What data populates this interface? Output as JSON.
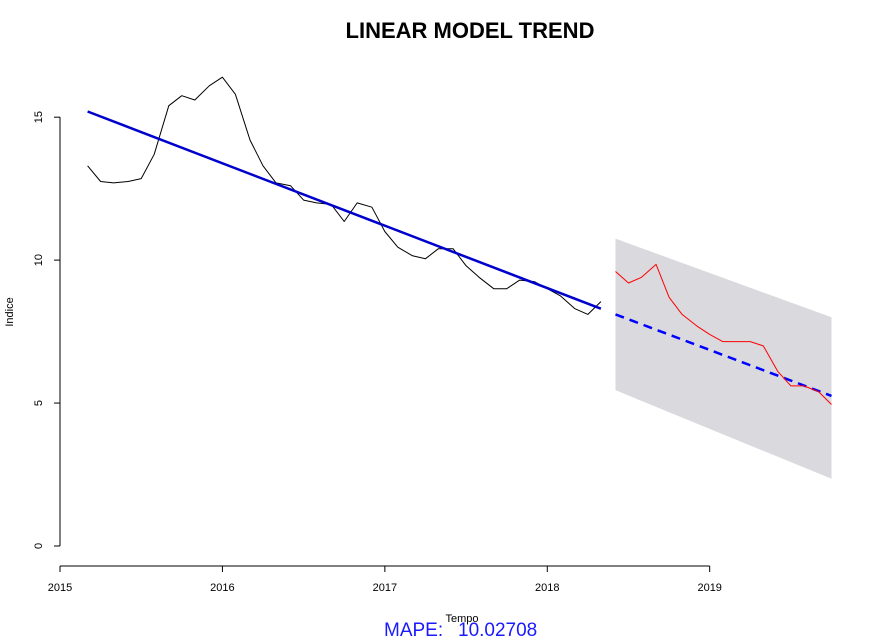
{
  "chart_data": {
    "type": "line",
    "title": "LINEAR MODEL TREND",
    "xlabel": "Tempo",
    "ylabel": "Indice",
    "xlim": [
      2015,
      2019.95
    ],
    "ylim": [
      -0.7,
      17
    ],
    "x_ticks": [
      2015,
      2016,
      2017,
      2018,
      2019
    ],
    "y_ticks": [
      0,
      5,
      10,
      15
    ],
    "grid": false,
    "series": [
      {
        "role": "observed",
        "color": "#000000",
        "x": [
          2015.17,
          2015.25,
          2015.33,
          2015.42,
          2015.5,
          2015.58,
          2015.67,
          2015.75,
          2015.83,
          2015.92,
          2016.0,
          2016.08,
          2016.17,
          2016.25,
          2016.33,
          2016.42,
          2016.5,
          2016.58,
          2016.67,
          2016.75,
          2016.83,
          2016.92,
          2017.0,
          2017.08,
          2017.17,
          2017.25,
          2017.33,
          2017.42,
          2017.5,
          2017.58,
          2017.67,
          2017.75,
          2017.83,
          2017.92,
          2018.0,
          2018.08,
          2018.17,
          2018.25,
          2018.33
        ],
        "y": [
          13.3,
          12.75,
          12.7,
          12.75,
          12.85,
          13.7,
          15.4,
          15.75,
          15.6,
          16.1,
          16.4,
          15.8,
          14.2,
          13.3,
          12.7,
          12.6,
          12.1,
          12.0,
          11.95,
          11.35,
          12.0,
          11.85,
          11.0,
          10.45,
          10.15,
          10.05,
          10.4,
          10.4,
          9.8,
          9.4,
          9.0,
          9.0,
          9.3,
          9.25,
          9.0,
          8.75,
          8.3,
          8.1,
          8.55
        ]
      },
      {
        "role": "fitted trend",
        "color": "#0000cd",
        "x": [
          2015.17,
          2018.33
        ],
        "y": [
          15.2,
          8.3
        ]
      },
      {
        "role": "forecast",
        "color": "#0000ff",
        "x": [
          2018.42,
          2019.75
        ],
        "y": [
          8.1,
          5.25
        ]
      },
      {
        "role": "actual (holdout)",
        "color": "#ff0000",
        "x": [
          2018.42,
          2018.5,
          2018.58,
          2018.67,
          2018.75,
          2018.83,
          2018.92,
          2019.0,
          2019.08,
          2019.17,
          2019.25,
          2019.33,
          2019.42,
          2019.5,
          2019.58,
          2019.67,
          2019.75
        ],
        "y": [
          9.6,
          9.2,
          9.4,
          9.85,
          8.7,
          8.1,
          7.7,
          7.4,
          7.15,
          7.15,
          7.15,
          7.0,
          6.1,
          5.6,
          5.6,
          5.4,
          4.95
        ]
      }
    ],
    "prediction_interval": {
      "color": "#d9d9de",
      "x": [
        2018.42,
        2019.75
      ],
      "upper": [
        10.75,
        8.0
      ],
      "lower": [
        5.45,
        2.35
      ]
    }
  },
  "footer": {
    "mape_label": "MAPE:",
    "mape_value": "10.02708",
    "mape_color": "#1a1aff"
  }
}
